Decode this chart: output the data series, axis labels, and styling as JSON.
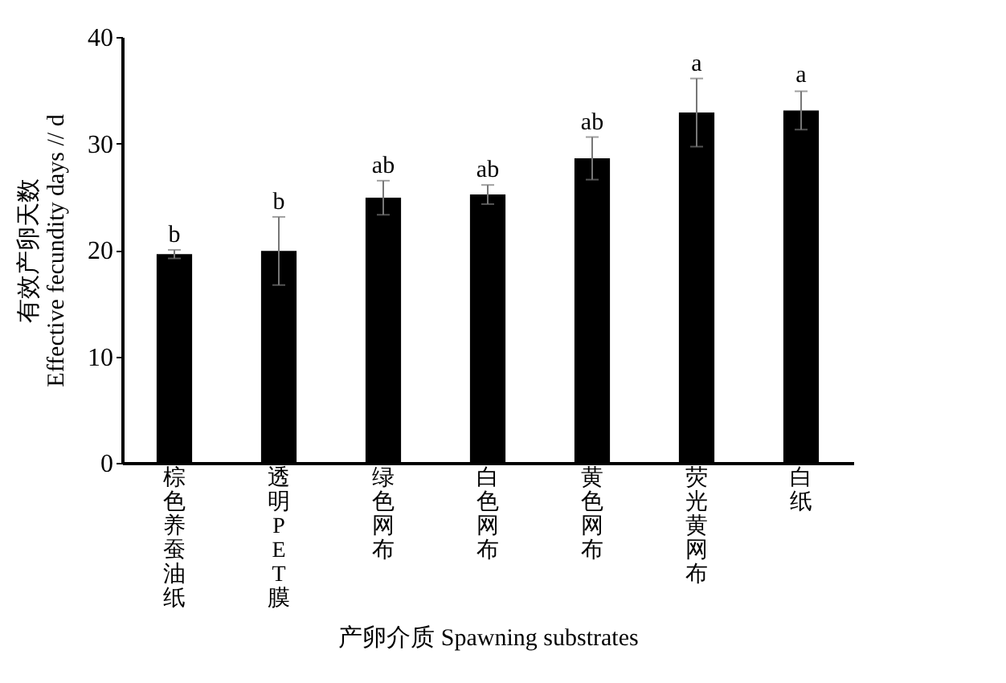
{
  "chart_data": {
    "type": "bar",
    "xlabel": "产卵介质 Spawning substrates",
    "ylabel": "有效产卵天数\nEffective fecundity days // d",
    "categories": [
      "棕色养蚕油纸",
      "透明PET膜",
      "绿色网布",
      "白色网布",
      "黄色网布",
      "荧光黄网布",
      "白纸"
    ],
    "series": [
      {
        "color": "#000000",
        "values": [
          19.6,
          19.9,
          24.9,
          25.2,
          28.6,
          32.9,
          33.1
        ],
        "errors": [
          0.4,
          3.2,
          1.6,
          0.9,
          2.0,
          3.2,
          1.8
        ]
      }
    ],
    "annotations": [
      {
        "text": "b",
        "x": "棕色养蚕油纸",
        "y": 20.0
      },
      {
        "text": "b",
        "x": "透明PET膜",
        "y": 23.1
      },
      {
        "text": "ab",
        "x": "绿色网布",
        "y": 26.5
      },
      {
        "text": "ab",
        "x": "白色网布",
        "y": 26.1
      },
      {
        "text": "ab",
        "x": "黄色网布",
        "y": 30.6
      },
      {
        "text": "a",
        "x": "荧光黄网布",
        "y": 36.1
      },
      {
        "text": "a",
        "x": "白纸",
        "y": 35.0
      }
    ],
    "ylim": [
      0,
      40
    ],
    "yticks": [
      0,
      10,
      20,
      30,
      40
    ],
    "grid": false
  }
}
